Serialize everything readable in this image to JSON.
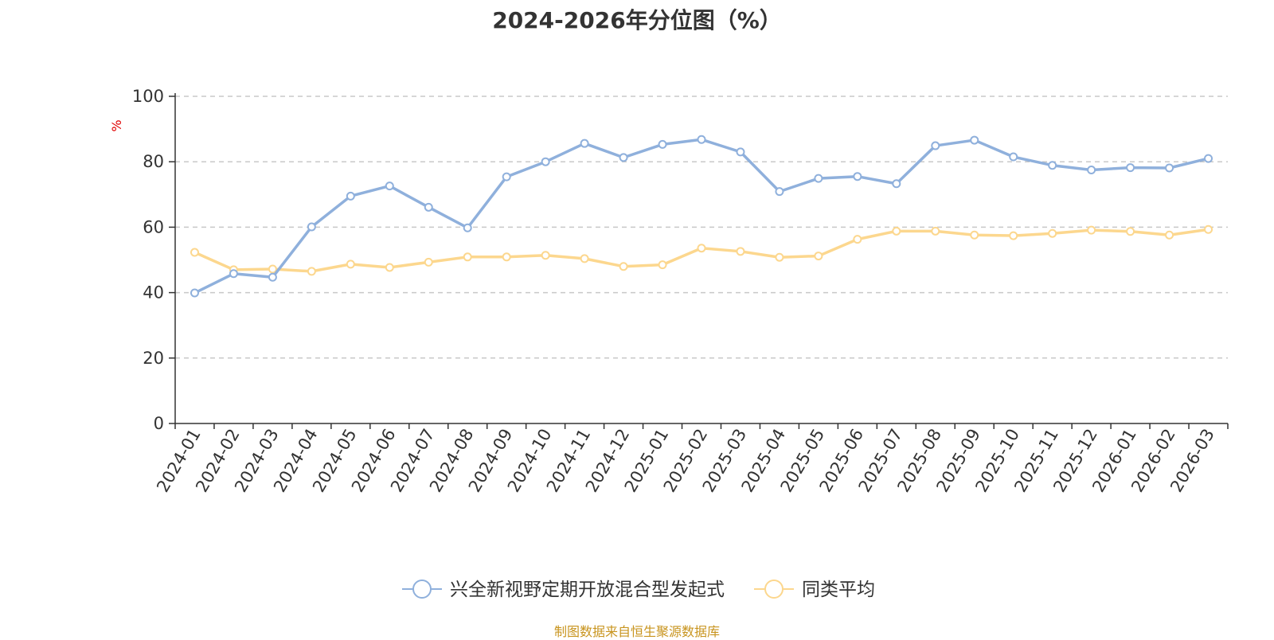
{
  "chart_data": {
    "type": "line",
    "title": "2024-2026年分位图（%）",
    "ylabel": "%",
    "ylim": [
      0,
      100
    ],
    "yticks": [
      0,
      20,
      40,
      60,
      80,
      100
    ],
    "grid": true,
    "legend_position": "bottom-center",
    "categories": [
      "2024-01",
      "2024-02",
      "2024-03",
      "2024-04",
      "2024-05",
      "2024-06",
      "2024-07",
      "2024-08",
      "2024-09",
      "2024-10",
      "2024-11",
      "2024-12",
      "2025-01",
      "2025-02",
      "2025-03",
      "2025-04",
      "2025-05",
      "2025-06",
      "2025-07",
      "2025-08",
      "2025-09",
      "2025-10",
      "2025-11",
      "2025-12",
      "2026-01",
      "2026-02",
      "2026-03"
    ],
    "series": [
      {
        "name": "兴全新视野定期开放混合型发起式",
        "color": "#8fb0dc",
        "values": [
          39.9,
          45.8,
          44.7,
          60.1,
          69.5,
          72.6,
          66.1,
          59.8,
          75.4,
          80.0,
          85.6,
          81.3,
          85.3,
          86.8,
          83.0,
          70.9,
          74.9,
          75.5,
          73.3,
          84.9,
          86.6,
          81.5,
          78.9,
          77.5,
          78.2,
          78.1,
          81.0
        ]
      },
      {
        "name": "同类平均",
        "color": "#fcd78e",
        "values": [
          52.3,
          47.0,
          47.2,
          46.5,
          48.7,
          47.7,
          49.3,
          50.9,
          50.9,
          51.4,
          50.4,
          48.0,
          48.5,
          53.6,
          52.6,
          50.8,
          51.2,
          56.3,
          58.8,
          58.8,
          57.6,
          57.4,
          58.1,
          59.1,
          58.7,
          57.6,
          59.3
        ]
      }
    ],
    "source": "制图数据来自恒生聚源数据库"
  }
}
